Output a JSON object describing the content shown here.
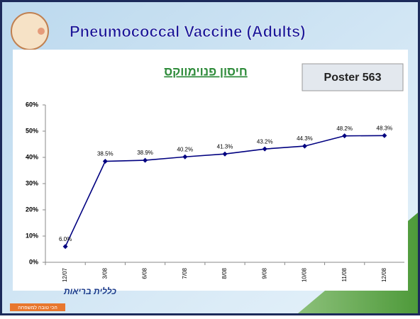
{
  "slide": {
    "title": "Pneumococcal Vaccine (Adults)",
    "subtitle": "חיסון פנוימווקס",
    "poster": "Poster 563",
    "logo": {
      "name": "כללית בריאות",
      "tagline": "הכי טובה למשפחה"
    }
  },
  "chart_data": {
    "type": "line",
    "categories": [
      "12/07",
      "3/08",
      "6/08",
      "7/08",
      "8/08",
      "9/08",
      "10/08",
      "11/08",
      "12/08"
    ],
    "series": [
      {
        "name": null,
        "color": "#000080",
        "values": [
          6.0,
          38.5,
          38.9,
          40.2,
          41.3,
          43.2,
          44.3,
          48.2,
          48.3
        ],
        "value_labels": [
          "6.0%",
          "38.5%",
          "38.9%",
          "40.2%",
          "41.3%",
          "43.2%",
          "44.3%",
          "48.2%",
          "48.3%"
        ]
      }
    ],
    "ylim": [
      0,
      60
    ],
    "yticks": [
      {
        "value": 0,
        "label": "0%"
      },
      {
        "value": 10,
        "label": "10%"
      },
      {
        "value": 20,
        "label": "20%"
      },
      {
        "value": 30,
        "label": "30%"
      },
      {
        "value": 40,
        "label": "40%"
      },
      {
        "value": 50,
        "label": "50%"
      },
      {
        "value": 60,
        "label": "60%"
      }
    ]
  }
}
